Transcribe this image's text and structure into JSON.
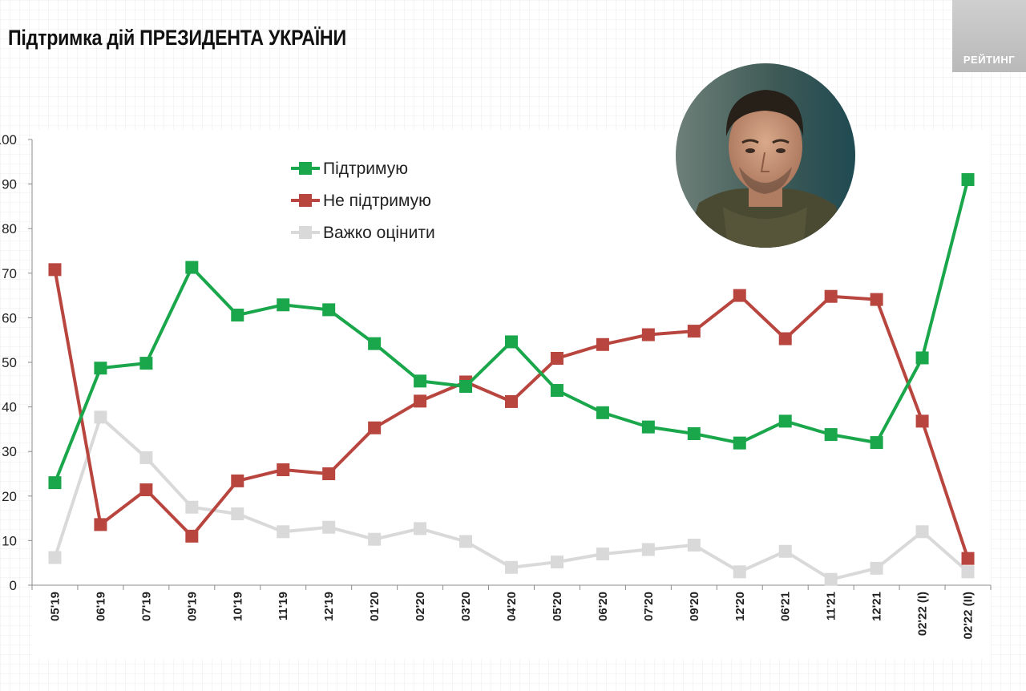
{
  "header": {
    "title": "Підтримка дій ПРЕЗИДЕНТА УКРАЇНИ",
    "brand": "РЕЙТИНГ"
  },
  "chart_data": {
    "type": "line",
    "title": "Підтримка дій ПРЕЗИДЕНТА УКРАЇНИ",
    "xlabel": "",
    "ylabel": "",
    "ylim": [
      0,
      100
    ],
    "yticks": [
      "0",
      "10",
      "20",
      "30",
      "40",
      "50",
      "60",
      "70",
      "80",
      "90",
      "100"
    ],
    "categories": [
      "05'19",
      "06'19",
      "07'19",
      "09'19",
      "10'19",
      "11'19",
      "12'19",
      "01'20",
      "02'20",
      "03'20",
      "04'20",
      "05'20",
      "06'20",
      "07'20",
      "09'20",
      "12'20",
      "06'21",
      "11'21",
      "12'21",
      "02'22 (I)",
      "02'22 (II)"
    ],
    "series": [
      {
        "name": "Підтримую",
        "color": "#1aa64a",
        "values": [
          23,
          48.7,
          49.8,
          71.3,
          60.6,
          62.9,
          61.8,
          54.2,
          45.8,
          44.6,
          54.6,
          43.7,
          38.7,
          35.5,
          34,
          31.9,
          36.8,
          33.8,
          32,
          51,
          91
        ]
      },
      {
        "name": "Не підтримую",
        "color": "#b8463f",
        "values": [
          70.8,
          13.6,
          21.4,
          11,
          23.4,
          25.9,
          25,
          35.3,
          41.3,
          45.6,
          41.2,
          50.9,
          54,
          56.2,
          57,
          65,
          55.3,
          64.8,
          64.1,
          36.8,
          6
        ]
      },
      {
        "name": "Важко оцінити",
        "color": "#d9d9d9",
        "values": [
          6.2,
          37.7,
          28.6,
          17.5,
          16,
          12,
          13,
          10.3,
          12.7,
          9.8,
          4,
          5.2,
          7,
          8,
          9,
          3,
          7.6,
          1.3,
          3.8,
          12,
          3
        ]
      }
    ],
    "legend_position": "top-center",
    "grid": false
  }
}
